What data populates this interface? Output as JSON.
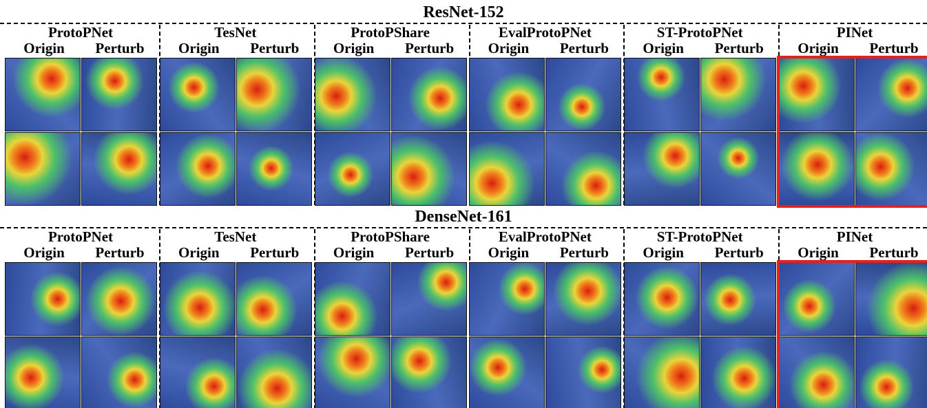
{
  "sections": [
    {
      "title": "ResNet-152",
      "methods": [
        {
          "name": "ProtoPNet",
          "columns": [
            "Origin",
            "Perturb"
          ]
        },
        {
          "name": "TesNet",
          "columns": [
            "Origin",
            "Perturb"
          ]
        },
        {
          "name": "ProtoPShare",
          "columns": [
            "Origin",
            "Perturb"
          ]
        },
        {
          "name": "EvalProtoPNet",
          "columns": [
            "Origin",
            "Perturb"
          ]
        },
        {
          "name": "ST-ProtoPNet",
          "columns": [
            "Origin",
            "Perturb"
          ]
        },
        {
          "name": "PINet",
          "columns": [
            "Origin",
            "Perturb"
          ]
        }
      ]
    },
    {
      "title": "DenseNet-161",
      "methods": [
        {
          "name": "ProtoPNet",
          "columns": [
            "Origin",
            "Perturb"
          ]
        },
        {
          "name": "TesNet",
          "columns": [
            "Origin",
            "Perturb"
          ]
        },
        {
          "name": "ProtoPShare",
          "columns": [
            "Origin",
            "Perturb"
          ]
        },
        {
          "name": "EvalProtoPNet",
          "columns": [
            "Origin",
            "Perturb"
          ]
        },
        {
          "name": "ST-ProtoPNet",
          "columns": [
            "Origin",
            "Perturb"
          ]
        },
        {
          "name": "PINet",
          "columns": [
            "Origin",
            "Perturb"
          ]
        }
      ]
    }
  ]
}
